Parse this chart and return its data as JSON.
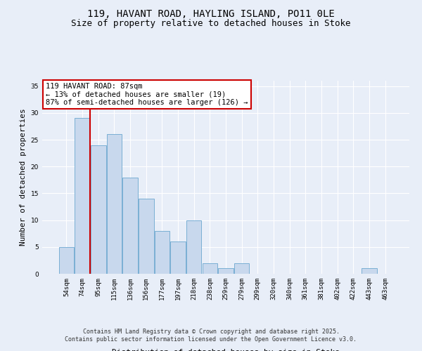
{
  "title_line1": "119, HAVANT ROAD, HAYLING ISLAND, PO11 0LE",
  "title_line2": "Size of property relative to detached houses in Stoke",
  "xlabel": "Distribution of detached houses by size in Stoke",
  "ylabel": "Number of detached properties",
  "categories": [
    "54sqm",
    "74sqm",
    "95sqm",
    "115sqm",
    "136sqm",
    "156sqm",
    "177sqm",
    "197sqm",
    "218sqm",
    "238sqm",
    "259sqm",
    "279sqm",
    "299sqm",
    "320sqm",
    "340sqm",
    "361sqm",
    "381sqm",
    "402sqm",
    "422sqm",
    "443sqm",
    "463sqm"
  ],
  "values": [
    5,
    29,
    24,
    26,
    18,
    14,
    8,
    6,
    10,
    2,
    1,
    2,
    0,
    0,
    0,
    0,
    0,
    0,
    0,
    1,
    0
  ],
  "bar_color": "#c8d8ed",
  "bar_edge_color": "#7aafd4",
  "bar_width": 0.95,
  "vline_x": 1.5,
  "vline_color": "#cc0000",
  "ylim": [
    0,
    36
  ],
  "yticks": [
    0,
    5,
    10,
    15,
    20,
    25,
    30,
    35
  ],
  "annotation_text": "119 HAVANT ROAD: 87sqm\n← 13% of detached houses are smaller (19)\n87% of semi-detached houses are larger (126) →",
  "annotation_box_color": "white",
  "annotation_box_edge_color": "#cc0000",
  "footer_line1": "Contains HM Land Registry data © Crown copyright and database right 2025.",
  "footer_line2": "Contains public sector information licensed under the Open Government Licence v3.0.",
  "background_color": "#e8eef8",
  "grid_color": "white",
  "title_fontsize": 10,
  "subtitle_fontsize": 9,
  "axis_label_fontsize": 8,
  "tick_fontsize": 6.5,
  "annotation_fontsize": 7.5,
  "footer_fontsize": 6
}
